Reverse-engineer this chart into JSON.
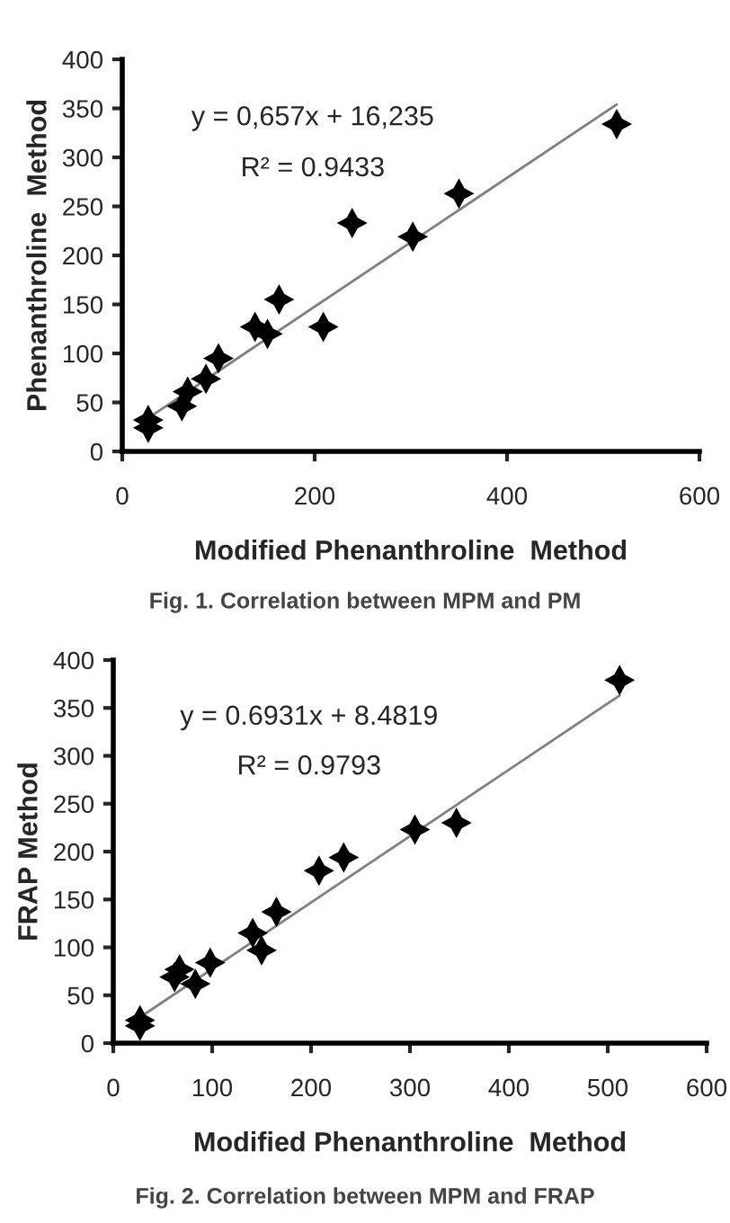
{
  "chart_data": [
    {
      "type": "scatter",
      "xlabel": "Modified Phenanthroline  Method",
      "ylabel": "Phenanthroline  Method",
      "xlim": [
        0,
        600
      ],
      "xticks": [
        0,
        200,
        400,
        600
      ],
      "ylim": [
        0,
        400
      ],
      "yticks": [
        0,
        50,
        100,
        150,
        200,
        250,
        300,
        350,
        400
      ],
      "grid": false,
      "legend": false,
      "marker": "star",
      "annotations": [
        "y = 0,657x + 16,235",
        "R² = 0.9433",
        "Fig. 1. Correlation between MPM and PM"
      ],
      "series": [
        {
          "color": "#000000",
          "x": [
            27,
            27,
            62,
            68,
            87,
            100,
            138,
            151,
            163,
            209,
            239,
            302,
            350,
            514
          ],
          "values": [
            32,
            24,
            46,
            61,
            74,
            95,
            127,
            120,
            155,
            127,
            233,
            219,
            263,
            334
          ]
        },
        {
          "type": "line",
          "color": "#808080",
          "marker": "none",
          "line_style": "solid",
          "x": [
            27,
            514
          ],
          "values": [
            34,
            354
          ]
        }
      ]
    },
    {
      "type": "scatter",
      "xlabel": "Modified Phenanthroline  Method",
      "ylabel": "FRAP Method",
      "xlim": [
        0,
        600
      ],
      "xticks": [
        0,
        100,
        200,
        300,
        400,
        500,
        600
      ],
      "ylim": [
        0,
        400
      ],
      "yticks": [
        0,
        50,
        100,
        150,
        200,
        250,
        300,
        350,
        400
      ],
      "grid": false,
      "legend": false,
      "marker": "star",
      "annotations": [
        "y = 0.6931x + 8.4819",
        "R² = 0.9793",
        "Fig. 2. Correlation between MPM and FRAP"
      ],
      "series": [
        {
          "color": "#000000",
          "x": [
            27,
            27,
            62,
            67,
            83,
            98,
            141,
            150,
            165,
            208,
            233,
            305,
            347,
            512
          ],
          "values": [
            24,
            18,
            69,
            77,
            62,
            84,
            115,
            97,
            137,
            180,
            194,
            223,
            230,
            379
          ]
        },
        {
          "type": "line",
          "color": "#808080",
          "marker": "none",
          "line_style": "solid",
          "x": [
            27,
            512
          ],
          "values": [
            27,
            363
          ]
        }
      ]
    }
  ]
}
